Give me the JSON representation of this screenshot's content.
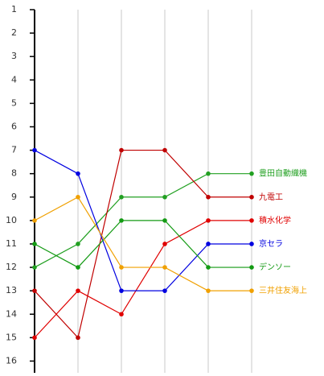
{
  "chart_data": {
    "type": "line",
    "categories": [
      null,
      null,
      null,
      null,
      null,
      null
    ],
    "series": [
      {
        "name": "豊田自動織機",
        "color": "#22a022",
        "values": [
          12,
          11,
          9,
          9,
          8,
          8
        ]
      },
      {
        "name": "九電工",
        "color": "#c00000",
        "values": [
          13,
          15,
          7,
          7,
          9,
          9
        ]
      },
      {
        "name": "積水化学",
        "color": "#e00000",
        "values": [
          15,
          13,
          14,
          11,
          10,
          10
        ]
      },
      {
        "name": "京セラ",
        "color": "#0000e0",
        "values": [
          7,
          8,
          13,
          13,
          11,
          11
        ]
      },
      {
        "name": "デンソー",
        "color": "#139a13",
        "values": [
          11,
          12,
          10,
          10,
          12,
          12
        ]
      },
      {
        "name": "三井住友海上",
        "color": "#f0a000",
        "values": [
          10,
          9,
          12,
          12,
          13,
          13
        ]
      }
    ],
    "ylim": [
      1,
      16.5
    ],
    "yticks": [
      1,
      2,
      3,
      4,
      5,
      6,
      7,
      8,
      9,
      10,
      11,
      12,
      13,
      14,
      15,
      16
    ],
    "y_inverted": true,
    "grid": true
  }
}
